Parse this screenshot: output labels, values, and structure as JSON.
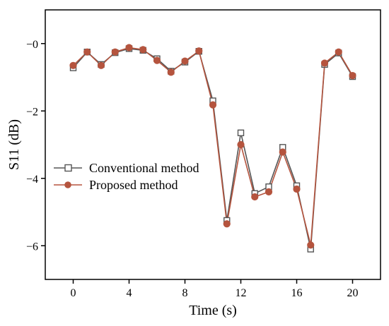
{
  "chart_data": {
    "type": "line",
    "xlabel": "Time (s)",
    "ylabel": "S11 (dB)",
    "xlim": [
      -2,
      22
    ],
    "ylim": [
      -7,
      1
    ],
    "xticks": [
      0,
      4,
      8,
      12,
      16,
      20
    ],
    "yticks": [
      0,
      -2,
      -4,
      -6
    ],
    "xtick_labels": [
      "0",
      "4",
      "8",
      "12",
      "16",
      "20"
    ],
    "ytick_labels": [
      "−0",
      "−2",
      "−4",
      "−6"
    ],
    "grid": false,
    "legend": "center-left",
    "x": [
      0,
      1,
      2,
      3,
      4,
      5,
      6,
      7,
      8,
      9,
      10,
      11,
      12,
      13,
      14,
      15,
      16,
      17,
      18,
      19,
      20
    ],
    "series": [
      {
        "name": "Conventional method",
        "marker": "open-square",
        "color": "#555555",
        "values": [
          -0.72,
          -0.25,
          -0.62,
          -0.27,
          -0.15,
          -0.2,
          -0.45,
          -0.82,
          -0.55,
          -0.23,
          -1.7,
          -5.25,
          -2.65,
          -4.45,
          -4.25,
          -3.08,
          -4.22,
          -6.1,
          -0.62,
          -0.28,
          -0.98
        ]
      },
      {
        "name": "Proposed method",
        "marker": "filled-circle",
        "color": "#b5543e",
        "values": [
          -0.65,
          -0.25,
          -0.65,
          -0.25,
          -0.12,
          -0.18,
          -0.5,
          -0.85,
          -0.52,
          -0.22,
          -1.82,
          -5.35,
          -3.0,
          -4.55,
          -4.4,
          -3.22,
          -4.32,
          -5.98,
          -0.58,
          -0.25,
          -0.95
        ]
      }
    ]
  }
}
